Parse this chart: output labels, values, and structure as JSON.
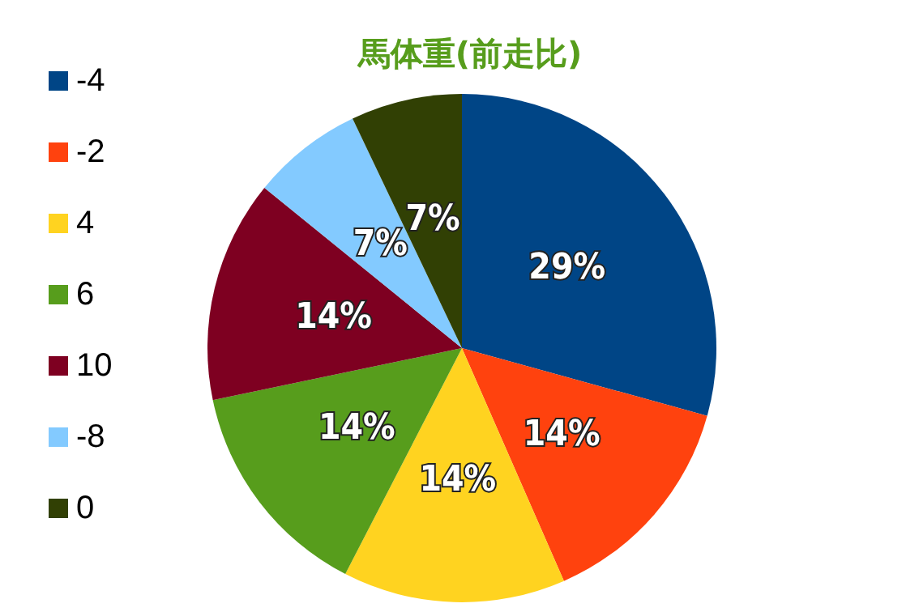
{
  "chart_data": {
    "type": "pie",
    "title": "馬体重(前走比)",
    "categories": [
      "-4",
      "-2",
      "4",
      "6",
      "10",
      "-8",
      "0"
    ],
    "values": [
      29,
      14,
      14,
      14,
      14,
      7,
      7
    ],
    "colors": [
      "#004586",
      "#ff420e",
      "#ffd320",
      "#579d1c",
      "#7e0021",
      "#83caff",
      "#314004"
    ],
    "value_labels": [
      "29%",
      "14%",
      "14%",
      "14%",
      "14%",
      "7%",
      "7%"
    ],
    "legend": "left"
  }
}
